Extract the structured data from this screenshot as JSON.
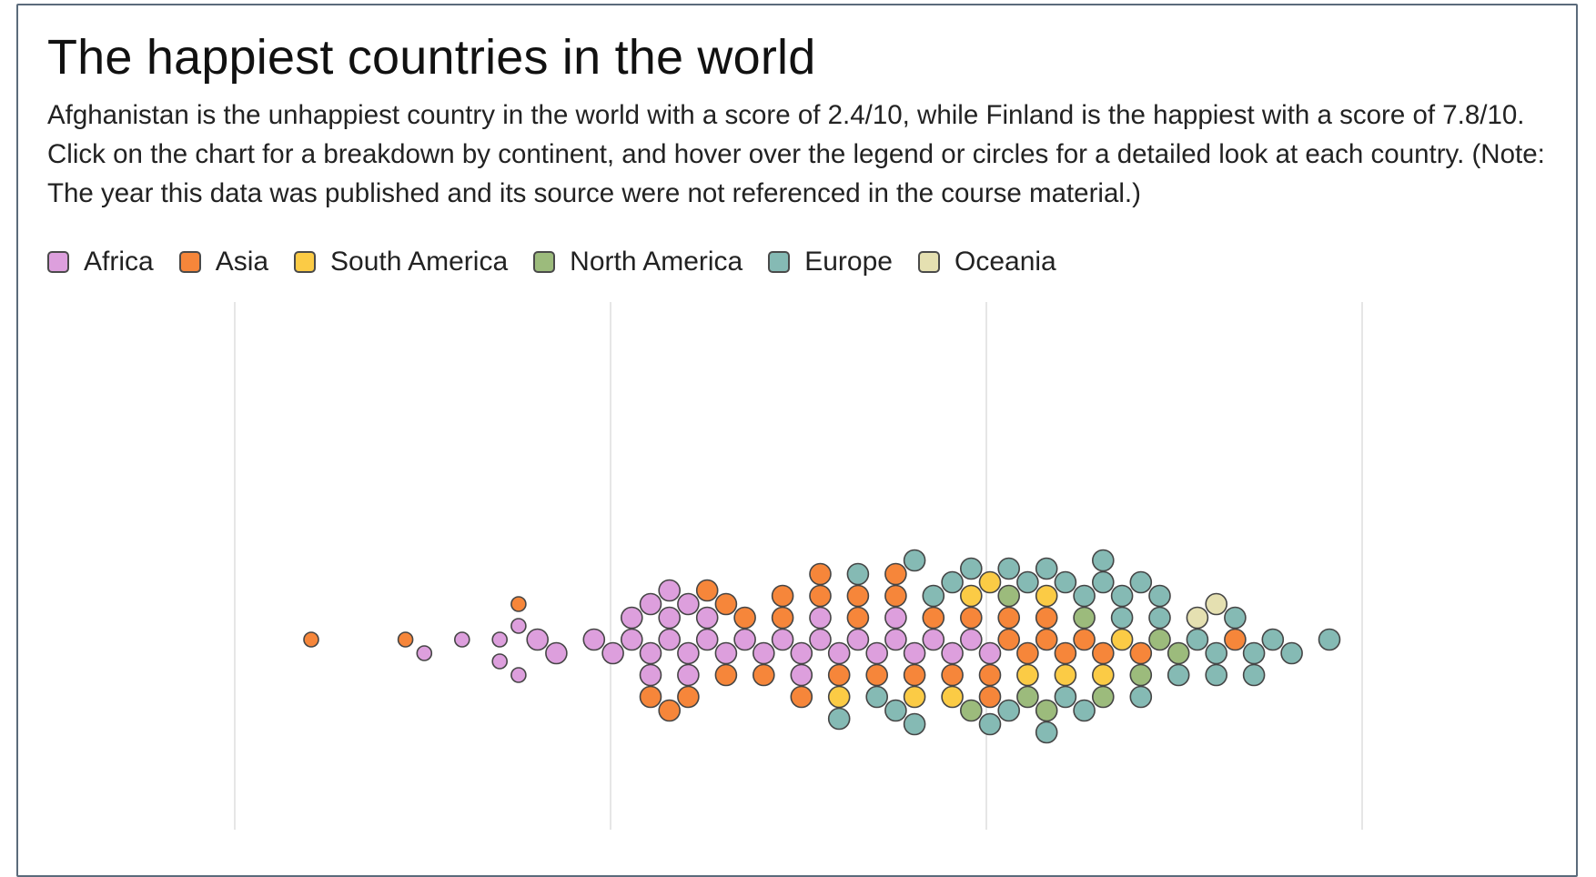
{
  "title": "The happiest countries in the world",
  "subtitle": "Afghanistan is the unhappiest country in the world with a score of 2.4/10, while Finland is the happiest with a score of 7.8/10. Click on the chart for a breakdown by continent, and hover over the legend or circles for a detailed look at each country. (Note: The year this data was published and its source were not referenced in the course material.)",
  "legend": [
    {
      "label": "Africa",
      "color": "#dd9fdd"
    },
    {
      "label": "Asia",
      "color": "#f6863a"
    },
    {
      "label": "South America",
      "color": "#fbcb45"
    },
    {
      "label": "North America",
      "color": "#9cbb7c"
    },
    {
      "label": "Europe",
      "color": "#85bab4"
    },
    {
      "label": "Oceania",
      "color": "#e5e0b1"
    }
  ],
  "chart_data": {
    "type": "scatter",
    "title": "The happiest countries in the world",
    "xlabel": "",
    "ylabel": "",
    "xlim": [
      2,
      8
    ],
    "grid": true,
    "series": [
      {
        "name": "Africa",
        "values": [
          3.0,
          3.2,
          3.4,
          3.4,
          3.5,
          3.5,
          3.6,
          3.7,
          3.9,
          4.0,
          4.1,
          4.1,
          4.2,
          4.2,
          4.2,
          4.3,
          4.3,
          4.3,
          4.4,
          4.4,
          4.4,
          4.5,
          4.5,
          4.6,
          4.7,
          4.8,
          4.9,
          5.0,
          5.0,
          5.1,
          5.1,
          5.2,
          5.3,
          5.4,
          5.5,
          5.5,
          5.6,
          5.7,
          5.8,
          5.9,
          6.0
        ]
      },
      {
        "name": "Asia",
        "values": [
          2.4,
          2.9,
          3.5,
          4.2,
          4.3,
          4.4,
          4.5,
          4.6,
          4.6,
          4.7,
          4.8,
          4.9,
          4.9,
          5.0,
          5.1,
          5.1,
          5.2,
          5.3,
          5.3,
          5.4,
          5.5,
          5.5,
          5.6,
          5.7,
          5.8,
          5.9,
          6.0,
          6.0,
          6.1,
          6.1,
          6.2,
          6.3,
          6.3,
          6.4,
          6.5,
          6.6,
          6.8,
          7.3
        ]
      },
      {
        "name": "South America",
        "values": [
          5.2,
          5.6,
          5.8,
          5.9,
          6.0,
          6.2,
          6.3,
          6.4,
          6.6,
          6.7
        ]
      },
      {
        "name": "North America",
        "values": [
          5.9,
          6.1,
          6.2,
          6.3,
          6.5,
          6.6,
          6.8,
          6.9,
          7.0
        ]
      },
      {
        "name": "Europe",
        "values": [
          5.2,
          5.3,
          5.4,
          5.5,
          5.6,
          5.6,
          5.7,
          5.8,
          5.9,
          6.0,
          6.1,
          6.1,
          6.2,
          6.3,
          6.3,
          6.4,
          6.4,
          6.5,
          6.5,
          6.6,
          6.6,
          6.7,
          6.7,
          6.8,
          6.8,
          6.9,
          6.9,
          7.0,
          7.1,
          7.2,
          7.2,
          7.3,
          7.4,
          7.4,
          7.5,
          7.6,
          7.8
        ]
      },
      {
        "name": "Oceania",
        "values": [
          7.1,
          7.2
        ]
      }
    ]
  }
}
